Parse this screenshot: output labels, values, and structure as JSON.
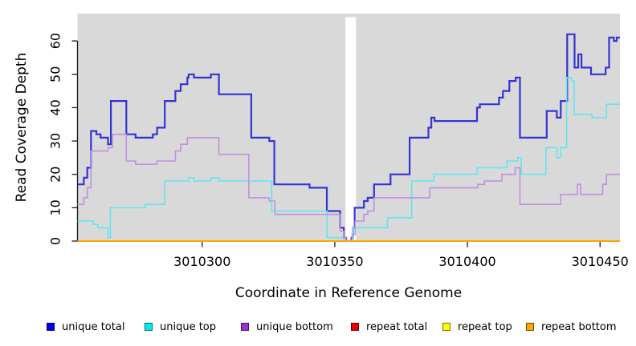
{
  "figure": {
    "xlabel": "Coordinate in Reference Genome",
    "ylabel": "Read Coverage Depth",
    "plot_bg": "#D9D9D9",
    "masked_band_color": "#FFFFFF",
    "axis_color": "#1a1a1a"
  },
  "legend": {
    "items": [
      {
        "label": "unique total",
        "swatch": "#0000EE"
      },
      {
        "label": "unique top",
        "swatch": "#00EEEE"
      },
      {
        "label": "unique bottom",
        "swatch": "#9A32CD"
      },
      {
        "label": "repeat total",
        "swatch": "#EE0000"
      },
      {
        "label": "repeat top",
        "swatch": "#FFFF00"
      },
      {
        "label": "repeat bottom",
        "swatch": "#FFA500"
      }
    ]
  },
  "chart_data": {
    "type": "line",
    "step": true,
    "title": "",
    "xlabel": "Coordinate in Reference Genome",
    "ylabel": "Read Coverage Depth",
    "xlim": [
      3010253,
      3010457.5
    ],
    "ylim": [
      0,
      68
    ],
    "x_ticks": [
      3010300,
      3010350,
      3010400,
      3010450
    ],
    "y_ticks": [
      0,
      10,
      20,
      30,
      40,
      50,
      60
    ],
    "grid": false,
    "legend_position": "bottom",
    "gap_region": {
      "x0": 3010354,
      "x1": 3010358
    },
    "series": [
      {
        "name": "unique total",
        "color": "#3434D6",
        "width": 2.2,
        "steps": [
          [
            3010253,
            17
          ],
          [
            3010255.4,
            19
          ],
          [
            3010256.7,
            22
          ],
          [
            3010258.1,
            33
          ],
          [
            3010260.1,
            32
          ],
          [
            3010261.7,
            31
          ],
          [
            3010264.5,
            29
          ],
          [
            3010265.6,
            42
          ],
          [
            3010271.4,
            32
          ],
          [
            3010274.9,
            31
          ],
          [
            3010281.4,
            32
          ],
          [
            3010283,
            34
          ],
          [
            3010285.9,
            42
          ],
          [
            3010289.9,
            45
          ],
          [
            3010291.9,
            47
          ],
          [
            3010294.4,
            49
          ],
          [
            3010294.9,
            50
          ],
          [
            3010296.9,
            49
          ],
          [
            3010303.3,
            50
          ],
          [
            3010306.3,
            44
          ],
          [
            3010318.5,
            31
          ],
          [
            3010325.3,
            30
          ],
          [
            3010327.2,
            17
          ],
          [
            3010340.5,
            16
          ],
          [
            3010347,
            9
          ],
          [
            3010352,
            4
          ],
          [
            3010353.4,
            1
          ],
          [
            3010354.3,
            0
          ],
          [
            3010356.3,
            1
          ],
          [
            3010356.9,
            4
          ],
          [
            3010357.5,
            10
          ],
          [
            3010361,
            12
          ],
          [
            3010362.4,
            13
          ],
          [
            3010364.8,
            17
          ],
          [
            3010371,
            20
          ],
          [
            3010378.2,
            31
          ],
          [
            3010385.3,
            34
          ],
          [
            3010386.4,
            37
          ],
          [
            3010387.6,
            36
          ],
          [
            3010403.6,
            40
          ],
          [
            3010404.7,
            41
          ],
          [
            3010411.9,
            43
          ],
          [
            3010413.4,
            45
          ],
          [
            3010415.8,
            48
          ],
          [
            3010418.2,
            49
          ],
          [
            3010419.8,
            31
          ],
          [
            3010429.9,
            39
          ],
          [
            3010433.7,
            37
          ],
          [
            3010435.2,
            42
          ],
          [
            3010437.6,
            62
          ],
          [
            3010440.4,
            52
          ],
          [
            3010441.8,
            56
          ],
          [
            3010443,
            52
          ],
          [
            3010446.6,
            50
          ],
          [
            3010452.1,
            52
          ],
          [
            3010453.4,
            61
          ],
          [
            3010455.2,
            60
          ],
          [
            3010456.3,
            61
          ]
        ]
      },
      {
        "name": "unique top",
        "color": "#63E6EF",
        "width": 1.6,
        "steps": [
          [
            3010253,
            6
          ],
          [
            3010259.1,
            5
          ],
          [
            3010260.7,
            4
          ],
          [
            3010264.5,
            1
          ],
          [
            3010265.4,
            10
          ],
          [
            3010278.6,
            11
          ],
          [
            3010285.9,
            18
          ],
          [
            3010294.9,
            19
          ],
          [
            3010296.9,
            18
          ],
          [
            3010303.3,
            19
          ],
          [
            3010306.3,
            18
          ],
          [
            3010326.2,
            9
          ],
          [
            3010347.1,
            1
          ],
          [
            3010353.4,
            0
          ],
          [
            3010356.9,
            4
          ],
          [
            3010369.9,
            7
          ],
          [
            3010379,
            18
          ],
          [
            3010387.3,
            20
          ],
          [
            3010403.7,
            22
          ],
          [
            3010414.9,
            24
          ],
          [
            3010419,
            25
          ],
          [
            3010420.3,
            20
          ],
          [
            3010429.6,
            28
          ],
          [
            3010433.7,
            25
          ],
          [
            3010435.2,
            28
          ],
          [
            3010437.4,
            49
          ],
          [
            3010439.4,
            48
          ],
          [
            3010440.2,
            38
          ],
          [
            3010447,
            37
          ],
          [
            3010452.4,
            41
          ]
        ]
      },
      {
        "name": "unique bottom",
        "color": "#C18FE0",
        "width": 1.6,
        "steps": [
          [
            3010253,
            11
          ],
          [
            3010255.4,
            13
          ],
          [
            3010256.7,
            16
          ],
          [
            3010258.1,
            27
          ],
          [
            3010264.5,
            28
          ],
          [
            3010266.2,
            32
          ],
          [
            3010271.4,
            24
          ],
          [
            3010274.9,
            23
          ],
          [
            3010283,
            24
          ],
          [
            3010289.9,
            27
          ],
          [
            3010291.9,
            29
          ],
          [
            3010294.4,
            31
          ],
          [
            3010306.3,
            26
          ],
          [
            3010317.6,
            13
          ],
          [
            3010325.3,
            12
          ],
          [
            3010327.4,
            8
          ],
          [
            3010352,
            3
          ],
          [
            3010353.3,
            1
          ],
          [
            3010354.2,
            0
          ],
          [
            3010356.5,
            2
          ],
          [
            3010357.7,
            6
          ],
          [
            3010361,
            8
          ],
          [
            3010362.4,
            9
          ],
          [
            3010364.8,
            13
          ],
          [
            3010385.8,
            16
          ],
          [
            3010403.9,
            17
          ],
          [
            3010406.4,
            18
          ],
          [
            3010413,
            20
          ],
          [
            3010418,
            22
          ],
          [
            3010419.8,
            11
          ],
          [
            3010435.2,
            14
          ],
          [
            3010441.5,
            17
          ],
          [
            3010442.7,
            14
          ],
          [
            3010451,
            17
          ],
          [
            3010452.4,
            20
          ]
        ]
      },
      {
        "name": "repeat total",
        "color": "#DD0000",
        "width": 1.5,
        "steps": [
          [
            3010253,
            0
          ]
        ]
      },
      {
        "name": "repeat top",
        "color": "#FFFF00",
        "width": 1.5,
        "steps": [
          [
            3010253,
            0
          ]
        ]
      },
      {
        "name": "repeat bottom",
        "color": "#FFA500",
        "width": 2,
        "steps": [
          [
            3010253,
            0
          ]
        ]
      }
    ]
  }
}
